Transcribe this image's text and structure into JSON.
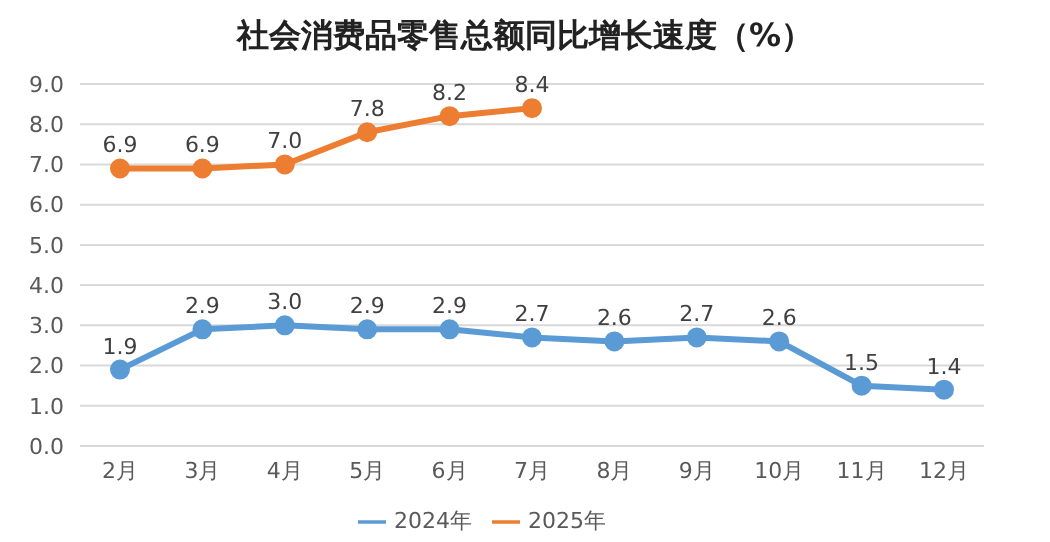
{
  "chart_data": {
    "type": "line",
    "title": "社会消费品零售总额同比增长速度（%）",
    "categories": [
      "2月",
      "3月",
      "4月",
      "5月",
      "6月",
      "7月",
      "8月",
      "9月",
      "10月",
      "11月",
      "12月"
    ],
    "series": [
      {
        "name": "2024年",
        "color": "#5b9bd5",
        "values": [
          1.9,
          2.9,
          3.0,
          2.9,
          2.9,
          2.7,
          2.6,
          2.7,
          2.6,
          1.5,
          1.4
        ],
        "value_labels": [
          "1.9",
          "2.9",
          "3.0",
          "2.9",
          "2.9",
          "2.7",
          "2.6",
          "2.7",
          "2.6",
          "1.5",
          "1.4"
        ]
      },
      {
        "name": "2025年",
        "color": "#ed7d31",
        "values": [
          6.9,
          6.9,
          7.0,
          7.8,
          8.2,
          8.4,
          null,
          null,
          null,
          null,
          null
        ],
        "value_labels": [
          "6.9",
          "6.9",
          "7.0",
          "7.8",
          "8.2",
          "8.4",
          null,
          null,
          null,
          null,
          null
        ]
      }
    ],
    "ylim": [
      0,
      9
    ],
    "yticks": [
      {
        "value": 0,
        "label": "0.0"
      },
      {
        "value": 1,
        "label": "1.0"
      },
      {
        "value": 2,
        "label": "2.0"
      },
      {
        "value": 3,
        "label": "3.0"
      },
      {
        "value": 4,
        "label": "4.0"
      },
      {
        "value": 5,
        "label": "5.0"
      },
      {
        "value": 6,
        "label": "6.0"
      },
      {
        "value": 7,
        "label": "7.0"
      },
      {
        "value": 8,
        "label": "8.0"
      },
      {
        "value": 9,
        "label": "9.0"
      }
    ],
    "grid": "y",
    "legend": "bottom",
    "marker": "circle",
    "line_style": "solid"
  }
}
